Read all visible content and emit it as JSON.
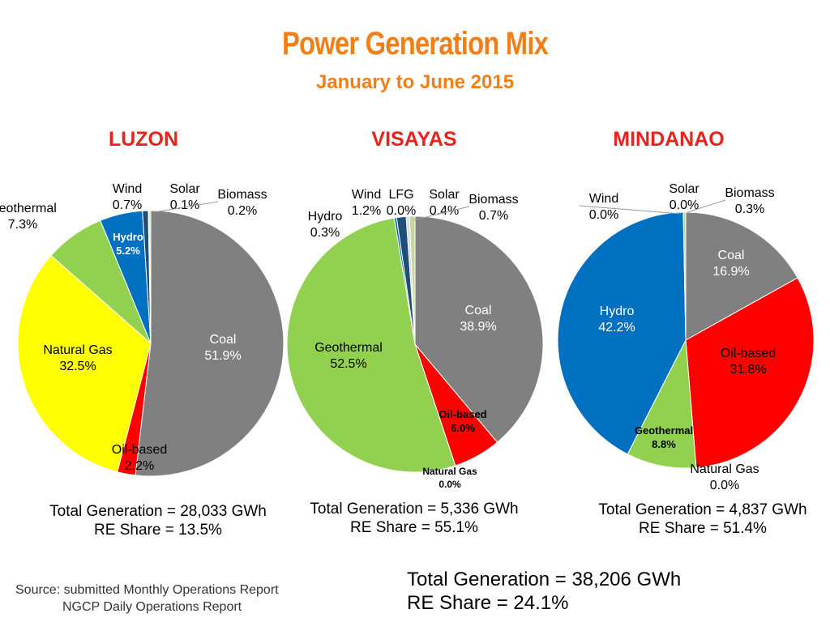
{
  "title": "Power Generation Mix",
  "subtitle": "January to June 2015",
  "chart_data": [
    {
      "type": "pie",
      "title": "LUZON",
      "slices": [
        {
          "label": "Coal",
          "value": 51.9,
          "color": "#808080"
        },
        {
          "label": "Oil-based",
          "value": 2.2,
          "color": "#ff0000"
        },
        {
          "label": "Natural Gas",
          "value": 32.5,
          "color": "#ffff00"
        },
        {
          "label": "Geothermal",
          "value": 7.3,
          "color": "#92d050"
        },
        {
          "label": "Hydro",
          "value": 5.2,
          "color": "#0070c0"
        },
        {
          "label": "Wind",
          "value": 0.7,
          "color": "#1f4e79"
        },
        {
          "label": "Solar",
          "value": 0.1,
          "color": "#d9d9d9"
        },
        {
          "label": "Biomass",
          "value": 0.2,
          "color": "#c4d79b"
        }
      ],
      "total_generation": "Total Generation = 28,033 GWh",
      "re_share": "RE Share = 13.5%"
    },
    {
      "type": "pie",
      "title": "VISAYAS",
      "slices": [
        {
          "label": "Coal",
          "value": 38.9,
          "color": "#808080"
        },
        {
          "label": "Oil-based",
          "value": 6.0,
          "color": "#ff0000"
        },
        {
          "label": "Natural Gas",
          "value": 0.0,
          "color": "#ffff00"
        },
        {
          "label": "Geothermal",
          "value": 52.5,
          "color": "#92d050"
        },
        {
          "label": "Hydro",
          "value": 0.3,
          "color": "#0070c0"
        },
        {
          "label": "Wind",
          "value": 1.2,
          "color": "#1f4e79"
        },
        {
          "label": "LFG",
          "value": 0.0,
          "color": "#9bbb59"
        },
        {
          "label": "Solar",
          "value": 0.4,
          "color": "#d9d9d9"
        },
        {
          "label": "Biomass",
          "value": 0.7,
          "color": "#c4d79b"
        }
      ],
      "total_generation": "Total Generation = 5,336 GWh",
      "re_share": "RE Share = 55.1%"
    },
    {
      "type": "pie",
      "title": "MINDANAO",
      "slices": [
        {
          "label": "Coal",
          "value": 16.9,
          "color": "#808080"
        },
        {
          "label": "Oil-based",
          "value": 31.8,
          "color": "#ff0000"
        },
        {
          "label": "Natural Gas",
          "value": 0.0,
          "color": "#ffff00"
        },
        {
          "label": "Geothermal",
          "value": 8.8,
          "color": "#92d050"
        },
        {
          "label": "Hydro",
          "value": 42.2,
          "color": "#0070c0"
        },
        {
          "label": "Wind",
          "value": 0.0,
          "color": "#1f4e79"
        },
        {
          "label": "Solar",
          "value": 0.0,
          "color": "#d9d9d9"
        },
        {
          "label": "Biomass",
          "value": 0.3,
          "color": "#c4d79b"
        }
      ],
      "total_generation": "Total Generation = 4,837 GWh",
      "re_share": "RE Share = 51.4%"
    }
  ],
  "grand_total": {
    "generation": "Total Generation = 38,206 GWh",
    "re_share": "RE Share = 24.1%"
  },
  "source": {
    "line1": "Source: submitted Monthly Operations Report",
    "line2": "NGCP Daily Operations Report"
  }
}
